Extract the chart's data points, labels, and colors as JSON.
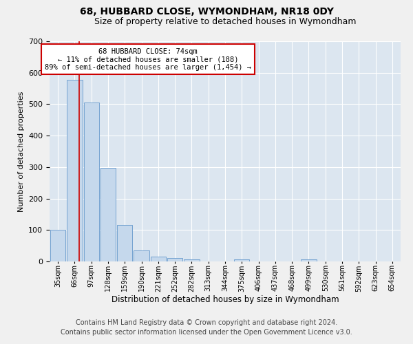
{
  "title": "68, HUBBARD CLOSE, WYMONDHAM, NR18 0DY",
  "subtitle": "Size of property relative to detached houses in Wymondham",
  "xlabel": "Distribution of detached houses by size in Wymondham",
  "ylabel": "Number of detached properties",
  "bin_labels": [
    "35sqm",
    "66sqm",
    "97sqm",
    "128sqm",
    "159sqm",
    "190sqm",
    "221sqm",
    "252sqm",
    "282sqm",
    "313sqm",
    "344sqm",
    "375sqm",
    "406sqm",
    "437sqm",
    "468sqm",
    "499sqm",
    "530sqm",
    "561sqm",
    "592sqm",
    "623sqm",
    "654sqm"
  ],
  "bar_values": [
    100,
    578,
    505,
    298,
    115,
    35,
    15,
    10,
    7,
    0,
    0,
    7,
    0,
    0,
    0,
    6,
    0,
    0,
    0,
    0,
    0
  ],
  "bar_color": "#c5d8ec",
  "bar_edge_color": "#6699cc",
  "vline_x": 1.25,
  "vline_color": "#cc0000",
  "ylim": [
    0,
    700
  ],
  "yticks": [
    0,
    100,
    200,
    300,
    400,
    500,
    600,
    700
  ],
  "annotation_text": "68 HUBBARD CLOSE: 74sqm\n← 11% of detached houses are smaller (188)\n89% of semi-detached houses are larger (1,454) →",
  "annotation_box_color": "#ffffff",
  "annotation_box_edge": "#cc0000",
  "footer_line1": "Contains HM Land Registry data © Crown copyright and database right 2024.",
  "footer_line2": "Contains public sector information licensed under the Open Government Licence v3.0.",
  "fig_bg_color": "#f0f0f0",
  "plot_bg_color": "#dce6f0",
  "title_fontsize": 10,
  "subtitle_fontsize": 9,
  "footer_fontsize": 7
}
